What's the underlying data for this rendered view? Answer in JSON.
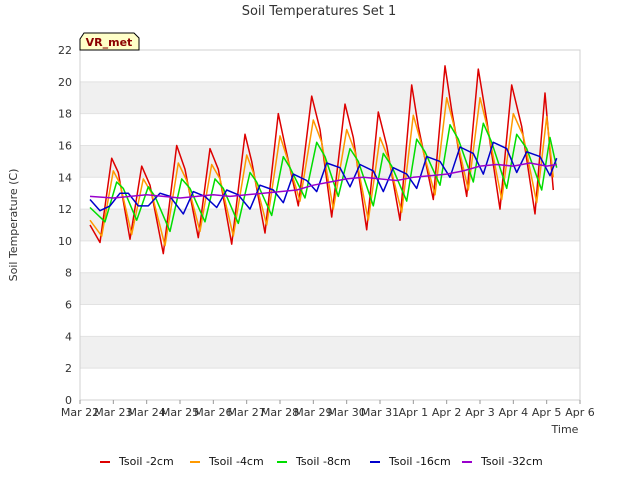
{
  "chart_data": {
    "type": "line",
    "title": "Soil Temperatures Set 1",
    "xlabel": "Time",
    "ylabel": "Soil Temperature (C)",
    "ylim": [
      0,
      22
    ],
    "yticks": [
      "0",
      "2",
      "4",
      "6",
      "8",
      "10",
      "12",
      "14",
      "16",
      "18",
      "20",
      "22"
    ],
    "xlim": [
      0,
      15
    ],
    "xticks": [
      "Mar 22",
      "Mar 23",
      "Mar 24",
      "Mar 25",
      "Mar 26",
      "Mar 27",
      "Mar 28",
      "Mar 29",
      "Mar 30",
      "Mar 31",
      "Apr 1",
      "Apr 2",
      "Apr 3",
      "Apr 4",
      "Apr 5",
      "Apr 6"
    ],
    "x_units": "days since Mar 22 00:00",
    "grid": "horizontal banded",
    "legend_position": "bottom",
    "badge": "VR_met",
    "series": [
      {
        "name": "Tsoil -2cm",
        "color": "#dd0000",
        "x": [
          0.3,
          0.6,
          0.95,
          1.15,
          1.5,
          1.85,
          2.1,
          2.5,
          2.9,
          3.15,
          3.55,
          3.9,
          4.15,
          4.55,
          4.95,
          5.15,
          5.55,
          5.95,
          6.15,
          6.55,
          6.95,
          7.2,
          7.55,
          7.95,
          8.2,
          8.6,
          8.95,
          9.2,
          9.6,
          9.95,
          10.15,
          10.6,
          10.95,
          11.15,
          11.6,
          11.95,
          12.2,
          12.6,
          12.95,
          13.25,
          13.65,
          13.95,
          14.2
        ],
        "values": [
          11.0,
          9.9,
          15.2,
          14.3,
          10.1,
          14.7,
          13.5,
          9.2,
          16.0,
          14.5,
          10.2,
          15.8,
          14.5,
          9.8,
          16.7,
          15.0,
          10.5,
          18.0,
          16.0,
          12.2,
          19.1,
          17.0,
          11.5,
          18.6,
          16.5,
          10.7,
          18.1,
          16.0,
          11.3,
          19.8,
          17.2,
          12.6,
          21.0,
          18.2,
          12.8,
          20.8,
          17.6,
          12.0,
          19.8,
          17.2,
          11.7,
          19.3,
          13.2
        ]
      },
      {
        "name": "Tsoil -4cm",
        "color": "#ff9900",
        "x": [
          0.3,
          0.65,
          1.0,
          1.2,
          1.55,
          1.9,
          2.15,
          2.55,
          2.95,
          3.2,
          3.6,
          3.95,
          4.2,
          4.6,
          5.0,
          5.2,
          5.6,
          6.0,
          6.2,
          6.6,
          7.0,
          7.25,
          7.6,
          8.0,
          8.25,
          8.65,
          9.0,
          9.25,
          9.65,
          10.0,
          10.2,
          10.65,
          11.0,
          11.2,
          11.65,
          12.0,
          12.25,
          12.65,
          13.0,
          13.3,
          13.7,
          14.0,
          14.2
        ],
        "values": [
          11.3,
          10.3,
          14.4,
          13.6,
          10.4,
          13.9,
          13.0,
          9.7,
          14.9,
          13.8,
          10.6,
          14.8,
          13.9,
          10.3,
          15.4,
          14.3,
          11.0,
          16.6,
          15.3,
          12.5,
          17.6,
          16.2,
          12.0,
          17.0,
          15.6,
          11.3,
          16.5,
          15.2,
          11.8,
          17.9,
          16.4,
          12.9,
          19.0,
          17.4,
          13.2,
          19.0,
          16.9,
          12.6,
          18.0,
          16.6,
          12.4,
          17.8,
          14.0
        ]
      },
      {
        "name": "Tsoil -8cm",
        "color": "#00dd00",
        "x": [
          0.3,
          0.75,
          1.1,
          1.3,
          1.7,
          2.05,
          2.25,
          2.7,
          3.05,
          3.3,
          3.75,
          4.05,
          4.3,
          4.75,
          5.1,
          5.3,
          5.75,
          6.1,
          6.3,
          6.75,
          7.1,
          7.35,
          7.75,
          8.1,
          8.35,
          8.8,
          9.1,
          9.35,
          9.8,
          10.1,
          10.35,
          10.8,
          11.1,
          11.35,
          11.8,
          12.1,
          12.35,
          12.8,
          13.1,
          13.4,
          13.85,
          14.1,
          14.3
        ],
        "values": [
          12.1,
          11.2,
          13.7,
          13.3,
          11.3,
          13.4,
          12.8,
          10.6,
          13.9,
          13.3,
          11.2,
          13.9,
          13.3,
          11.1,
          14.3,
          13.7,
          11.6,
          15.3,
          14.6,
          12.7,
          16.2,
          15.3,
          12.8,
          15.8,
          15.0,
          12.2,
          15.5,
          14.7,
          12.5,
          16.4,
          15.6,
          13.5,
          17.3,
          16.4,
          13.7,
          17.4,
          16.2,
          13.3,
          16.7,
          15.8,
          13.2,
          16.5,
          14.6
        ]
      },
      {
        "name": "Tsoil -16cm",
        "color": "#0000cc",
        "x": [
          0.3,
          0.6,
          0.9,
          1.2,
          1.45,
          1.75,
          2.05,
          2.4,
          2.7,
          3.1,
          3.4,
          3.75,
          4.1,
          4.4,
          4.75,
          5.1,
          5.4,
          5.8,
          6.1,
          6.4,
          6.8,
          7.1,
          7.4,
          7.8,
          8.1,
          8.4,
          8.8,
          9.1,
          9.4,
          9.8,
          10.1,
          10.4,
          10.8,
          11.1,
          11.4,
          11.8,
          12.1,
          12.4,
          12.8,
          13.1,
          13.4,
          13.8,
          14.1,
          14.3
        ],
        "values": [
          12.6,
          11.9,
          12.2,
          13.0,
          13.0,
          12.2,
          12.2,
          13.0,
          12.8,
          11.7,
          13.1,
          12.8,
          12.1,
          13.2,
          12.9,
          12.0,
          13.5,
          13.2,
          12.4,
          14.2,
          13.8,
          13.1,
          14.9,
          14.6,
          13.4,
          14.8,
          14.4,
          13.1,
          14.6,
          14.2,
          13.3,
          15.3,
          15.0,
          14.0,
          15.9,
          15.5,
          14.2,
          16.2,
          15.8,
          14.3,
          15.6,
          15.3,
          14.1,
          15.2
        ]
      },
      {
        "name": "Tsoil -32cm",
        "color": "#9900cc",
        "x": [
          0.3,
          1.0,
          1.5,
          2.0,
          2.5,
          3.0,
          3.5,
          4.0,
          4.5,
          5.0,
          5.5,
          6.0,
          6.5,
          7.0,
          7.5,
          8.0,
          8.5,
          9.0,
          9.5,
          10.0,
          10.5,
          11.0,
          11.5,
          12.0,
          12.5,
          13.0,
          13.5,
          14.0,
          14.3
        ],
        "values": [
          12.8,
          12.7,
          12.8,
          12.9,
          12.8,
          12.7,
          12.8,
          12.9,
          12.8,
          12.9,
          13.0,
          13.1,
          13.2,
          13.5,
          13.7,
          13.9,
          14.0,
          13.9,
          13.8,
          14.0,
          14.1,
          14.2,
          14.4,
          14.7,
          14.8,
          14.7,
          14.9,
          14.7,
          14.8
        ]
      }
    ]
  }
}
